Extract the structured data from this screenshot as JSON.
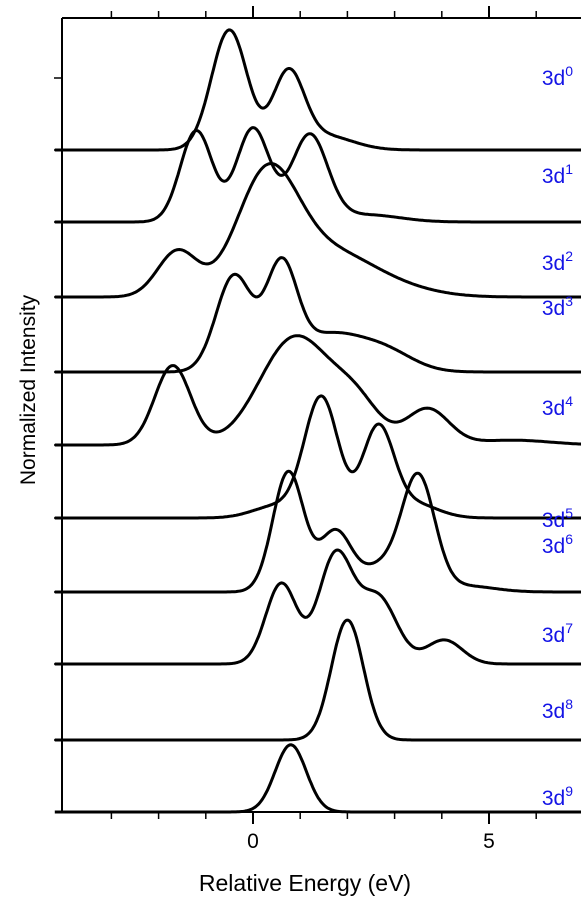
{
  "chart_data": {
    "type": "line",
    "title": "",
    "xlabel": "Relative Energy (eV)",
    "ylabel": "Normalized Intensity",
    "xlim": [
      -4.2,
      7
    ],
    "xticks_major": [
      0,
      5
    ],
    "xticks_minor": [
      -3,
      -2,
      -1,
      1,
      2,
      3,
      4,
      6
    ],
    "grid": false,
    "legend": "none",
    "line_color": "#000000",
    "label_color": "#1414e6",
    "series": [
      {
        "label_base": "3d",
        "label_exp": "0",
        "peaks": [
          [
            -0.5,
            1.0,
            0.38
          ],
          [
            0.75,
            0.62,
            0.33
          ],
          [
            1.5,
            0.12,
            0.6
          ]
        ]
      },
      {
        "label_base": "3d",
        "label_exp": "1",
        "peaks": [
          [
            -1.2,
            0.76,
            0.34
          ],
          [
            0.0,
            0.78,
            0.35
          ],
          [
            1.2,
            0.72,
            0.38
          ],
          [
            2.4,
            0.06,
            0.7
          ]
        ]
      },
      {
        "label_base": "3d",
        "label_exp": "2",
        "peaks": [
          [
            -1.6,
            0.38,
            0.42
          ],
          [
            0.3,
            1.0,
            0.65
          ],
          [
            1.7,
            0.35,
            0.9
          ],
          [
            3.2,
            0.05,
            0.8
          ]
        ]
      },
      {
        "label_base": "3d",
        "label_exp": "3",
        "peaks": [
          [
            -0.4,
            0.8,
            0.38
          ],
          [
            0.6,
            0.82,
            0.33
          ],
          [
            1.6,
            0.3,
            0.7
          ],
          [
            2.8,
            0.16,
            0.6
          ]
        ]
      },
      {
        "label_base": "3d",
        "label_exp": "4",
        "peaks": [
          [
            -1.7,
            0.66,
            0.38
          ],
          [
            0.9,
            0.9,
            0.75
          ],
          [
            2.2,
            0.3,
            0.5
          ],
          [
            3.7,
            0.3,
            0.45
          ],
          [
            5.5,
            0.04,
            0.8
          ]
        ]
      },
      {
        "label_base": "3d",
        "label_exp": "5",
        "peaks": [
          [
            0.5,
            0.1,
            0.5
          ],
          [
            1.45,
            1.0,
            0.36
          ],
          [
            2.65,
            0.74,
            0.33
          ],
          [
            3.4,
            0.12,
            0.5
          ]
        ]
      },
      {
        "label_base": "3d",
        "label_exp": "6",
        "peaks": [
          [
            0.75,
            1.0,
            0.33
          ],
          [
            1.75,
            0.5,
            0.34
          ],
          [
            2.7,
            0.2,
            0.4
          ],
          [
            3.5,
            0.95,
            0.35
          ],
          [
            4.5,
            0.05,
            0.6
          ]
        ]
      },
      {
        "label_base": "3d",
        "label_exp": "7",
        "peaks": [
          [
            0.6,
            0.67,
            0.33
          ],
          [
            1.75,
            0.9,
            0.36
          ],
          [
            2.65,
            0.55,
            0.4
          ],
          [
            4.05,
            0.2,
            0.38
          ]
        ]
      },
      {
        "label_base": "3d",
        "label_exp": "8",
        "peaks": [
          [
            2.0,
            1.0,
            0.34
          ]
        ]
      },
      {
        "label_base": "3d",
        "label_exp": "9",
        "peaks": [
          [
            0.8,
            0.56,
            0.33
          ]
        ]
      }
    ]
  }
}
